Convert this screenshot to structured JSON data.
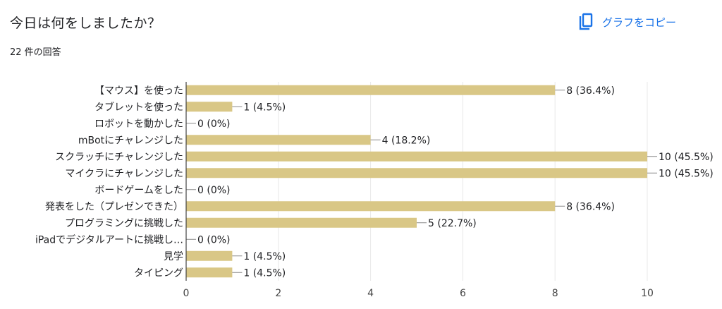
{
  "header": {
    "title": "今日は何をしましたか？",
    "response_count": "22 件の回答",
    "copy_label": "グラフをコピー"
  },
  "colors": {
    "bar": "#d9c786",
    "accent": "#1a73e8",
    "grid": "#e8e8e8",
    "axis": "#444444"
  },
  "chart_data": {
    "type": "bar",
    "orientation": "horizontal",
    "categories": [
      "【マウス】を使った",
      "タブレットを使った",
      "ロボットを動かした",
      "mBotにチャレンジした",
      "スクラッチにチャレンジした",
      "マイクラにチャレンジした",
      "ボードゲームをした",
      "発表をした（プレゼンできた）",
      "プログラミングに挑戦した",
      "iPadでデジタルアートに挑戦し…",
      "見学",
      "タイピング"
    ],
    "values": [
      8,
      1,
      0,
      4,
      10,
      10,
      0,
      8,
      5,
      0,
      1,
      1
    ],
    "value_labels": [
      "8 (36.4%)",
      "1 (4.5%)",
      "0 (0%)",
      "4 (18.2%)",
      "10 (45.5%)",
      "10 (45.5%)",
      "0 (0%)",
      "8 (36.4%)",
      "5 (22.7%)",
      "0 (0%)",
      "1 (4.5%)",
      "1 (4.5%)"
    ],
    "xlim": [
      0,
      10
    ],
    "xticks": [
      0,
      2,
      4,
      6,
      8,
      10
    ],
    "grid": true
  }
}
